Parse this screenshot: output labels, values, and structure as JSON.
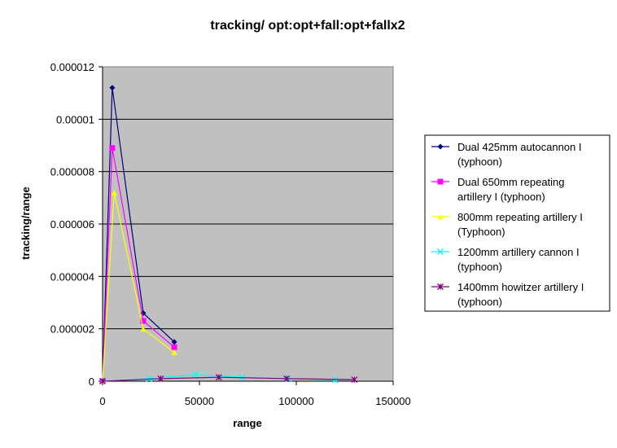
{
  "chart_data": {
    "type": "scatter",
    "title": "tracking/ opt:opt+fall:opt+fallx2",
    "xlabel": "range",
    "ylabel": "tracking/range",
    "xlim": [
      0,
      150000
    ],
    "ylim": [
      0,
      1.2e-05
    ],
    "x_ticks": [
      "0",
      "50000",
      "100000",
      "150000"
    ],
    "y_ticks": [
      "0",
      "0.000002",
      "0.000004",
      "0.000006",
      "0.000008",
      "0.00001",
      "0.000012"
    ],
    "grid": "horizontal",
    "plot_background": "#c0c0c0",
    "legend_position": "right",
    "series": [
      {
        "name_lines": [
          "Dual 425mm autocannon I",
          "(typhoon)"
        ],
        "color": "#000080",
        "marker": "diamond",
        "points": [
          [
            0,
            0
          ],
          [
            5000,
            1.12e-05
          ],
          [
            21000,
            2.6e-06
          ],
          [
            37000,
            1.5e-06
          ]
        ]
      },
      {
        "name_lines": [
          "Dual 650mm repeating",
          "artillery I (typhoon)"
        ],
        "color": "#ff00ff",
        "marker": "square",
        "points": [
          [
            0,
            0
          ],
          [
            5000,
            8.9e-06
          ],
          [
            21000,
            2.3e-06
          ],
          [
            37000,
            1.3e-06
          ]
        ]
      },
      {
        "name_lines": [
          "800mm repeating artillery I",
          "(Typhoon)"
        ],
        "color": "#ffff00",
        "marker": "triangle",
        "points": [
          [
            0,
            0
          ],
          [
            6000,
            7.2e-06
          ],
          [
            21000,
            2e-06
          ],
          [
            37000,
            1.1e-06
          ]
        ]
      },
      {
        "name_lines": [
          "1200mm artillery cannon I",
          "(typhoon)"
        ],
        "color": "#00ffff",
        "marker": "x",
        "points": [
          [
            0,
            0
          ],
          [
            24000,
            1e-07
          ],
          [
            48000,
            2.5e-07
          ],
          [
            72000,
            1.5e-07
          ],
          [
            96000,
            1e-07
          ],
          [
            120000,
            5e-08
          ]
        ]
      },
      {
        "name_lines": [
          "1400mm howitzer artillery I",
          "(typhoon)"
        ],
        "color": "#800080",
        "marker": "star",
        "points": [
          [
            0,
            0
          ],
          [
            30000,
            1e-07
          ],
          [
            60000,
            1.5e-07
          ],
          [
            95000,
            1e-07
          ],
          [
            130000,
            6e-08
          ]
        ]
      }
    ]
  }
}
